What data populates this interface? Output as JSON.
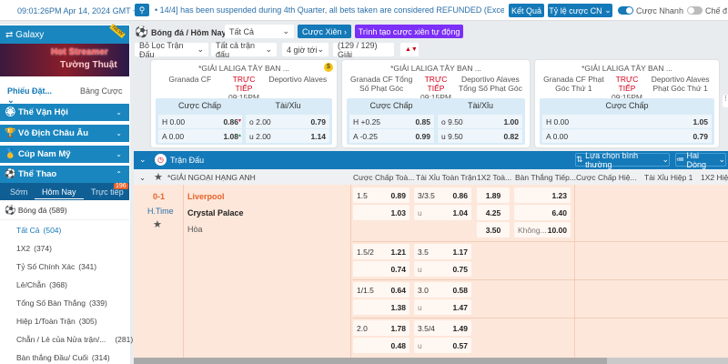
{
  "topbar": {
    "time": "09:01:26PM Apr 14, 2024 GMT +7",
    "ticker": "• 14/4] has been suspended during 4th Quarter, all bets taken are considered REFUNDED (Except 1st,",
    "results": "Kết Quả",
    "odds_type": "Tỷ lệ cược CN",
    "quick_bet": "Cược Nhanh",
    "mode": "Chế đ",
    "quick_bet_on": true,
    "mode_on": false
  },
  "toolbar": {
    "breadcrumb": "Bóng đá / Hôm Nay",
    "filter_all": "Tất Cả",
    "parlay": "Cược Xiên",
    "auto_parlay": "Trình tạo cược xiên tự động",
    "clear_filter": "Bỏ Lọc Trận Đấu",
    "all_matches": "Tất cả trận đấu",
    "time_range": "4 giờ tới",
    "leagues_count": "(129 / 129) Giải"
  },
  "sidebar": {
    "galaxy": "Galaxy",
    "banner_line1": "Hot Streamer",
    "banner_line2": "Tường Thuật",
    "banner_badge": "NEW",
    "tabs": [
      "Phiếu Đặt...",
      "Bảng Cược"
    ],
    "sections": [
      {
        "label": "Thế Vận Hội"
      },
      {
        "label": "Vô Địch Châu Âu"
      },
      {
        "label": "Cúp Nam Mỹ"
      },
      {
        "label": "Thể Thao"
      }
    ],
    "sport_tabs": [
      "Sớm",
      "Hôm Nay",
      "Trực tiếp"
    ],
    "live_count": "196",
    "sport": "Bóng đá",
    "sport_count": "(589)",
    "markets": [
      {
        "label": "Tất Cả",
        "count": "(504)"
      },
      {
        "label": "1X2",
        "count": "(374)"
      },
      {
        "label": "Tỷ Số Chính Xác",
        "count": "(341)"
      },
      {
        "label": "Lẻ/Chẵn",
        "count": "(368)"
      },
      {
        "label": "Tổng Số Bàn Thắng",
        "count": "(339)"
      },
      {
        "label": "Hiệp 1/Toàn Trận",
        "count": "(305)"
      },
      {
        "label": "Chẵn / Lẻ của Nửa trận/...",
        "count": "(281)"
      },
      {
        "label": "Bàn thắng Đầu/ Cuối",
        "count": "(314)"
      }
    ]
  },
  "featured": [
    {
      "league": "*GIẢI LALIGA TÂY BAN ...",
      "home": "Granada CF",
      "away": "Deportivo Alaves",
      "status": "TRỰC TIẾP",
      "time": "09:15PM",
      "hdp_label": "Cược Chấp",
      "ou_label": "Tài/Xỉu",
      "rows": [
        [
          "H",
          "0.00",
          "0.86",
          "o",
          "2.00",
          "0.79"
        ],
        [
          "A",
          "0.00",
          "1.08",
          "u",
          "2.00",
          "1.14"
        ]
      ]
    },
    {
      "league": "*GIẢI LALIGA TÂY BAN ...",
      "home": "Granada CF Tổng Số Phạt Góc",
      "away": "Deportivo Alaves Tổng Số Phạt Góc",
      "status": "TRỰC TIẾP",
      "time": "09:15PM",
      "hdp_label": "Cược Chấp",
      "ou_label": "Tài/Xỉu",
      "rows": [
        [
          "H",
          "+0.25",
          "0.85",
          "o",
          "9.50",
          "1.00"
        ],
        [
          "A",
          "-0.25",
          "0.99",
          "u",
          "9.50",
          "0.82"
        ]
      ]
    },
    {
      "league": "*GIẢI LALIGA TÂY BAN ...",
      "home": "Granada CF Phạt Góc Thứ 1",
      "away": "Deportivo Alaves Phạt Góc Thứ 1",
      "status": "TRỰC TIẾP",
      "time": "09:15PM",
      "hdp_label": "Cược Chấp",
      "rows": [
        [
          "H",
          "0.00",
          "1.05"
        ],
        [
          "A",
          "0.00",
          "0.79"
        ]
      ]
    }
  ],
  "matches": {
    "title": "Trận Đấu",
    "sort": "Lựa chọn bình thường",
    "view": "Hai Dòng",
    "league": "*GIẢI NGOẠI HẠNG ANH",
    "columns": [
      "Cược Chấp Toà...",
      "Tài Xỉu Toàn Trận",
      "1X2 Toà...",
      "Bàn Thắng Tiếp...",
      "Cược Chấp Hiệ...",
      "Tài Xỉu Hiệp 1",
      "1X2 Hiệ"
    ],
    "score": "0-1",
    "period": "H.Time",
    "home": "Liverpool",
    "away": "Crystal Palace",
    "draw": "Hòa",
    "lines": [
      {
        "hdp": "1.5",
        "hdp_h": "0.89",
        "hdp_a": "1.03",
        "ou": "3/3.5",
        "ou_o": "0.86",
        "ou_u_label": "u",
        "ou_u": "1.04",
        "x12": [
          "1.89",
          "4.25",
          "3.50"
        ],
        "next": [
          "1.23",
          "6.40"
        ],
        "next_none_label": "Không...",
        "next_none": "10.00"
      },
      {
        "hdp": "1.5/2",
        "hdp_h": "1.21",
        "hdp_a": "0.74",
        "ou": "3.5",
        "ou_o": "1.17",
        "ou_u_label": "u",
        "ou_u": "0.75"
      },
      {
        "hdp": "1/1.5",
        "hdp_h": "0.64",
        "hdp_a": "1.38",
        "ou": "3.0",
        "ou_o": "0.58",
        "ou_u_label": "u",
        "ou_u": "1.47"
      },
      {
        "hdp": "2.0",
        "hdp_h": "1.78",
        "hdp_a": "0.48",
        "ou": "3.5/4",
        "ou_o": "1.49",
        "ou_u_label": "u",
        "ou_u": "0.57"
      }
    ]
  },
  "colors": {
    "primary": "#1479b8",
    "accent_purple": "#7b2ff7",
    "live_red": "#d0021b",
    "home_team": "#e8642c",
    "row_bg": "#fde7da"
  }
}
